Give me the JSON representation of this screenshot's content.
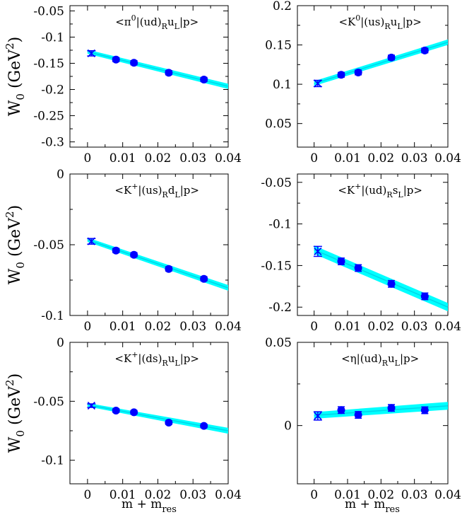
{
  "figure": {
    "ylabel_main": "W",
    "ylabel_sub": "0",
    "ylabel_unit": "(GeV",
    "ylabel_pow": "2",
    "ylabel_close": ")",
    "xlabel_main": "m + m",
    "xlabel_sub": "res"
  },
  "chart_data": [
    {
      "type": "scatter",
      "title": "<π⁰|(ud)RuL|p>",
      "title_parts": {
        "bra": "<π",
        "bra_sup": "0",
        "mid": "|(ud)",
        "sub1": "R",
        "u": "u",
        "sub2": "L",
        "ket": "|p>"
      },
      "xlim": [
        -0.005,
        0.04
      ],
      "ylim": [
        -0.31,
        -0.04
      ],
      "xticks": [
        "0",
        "0.01",
        "0.02",
        "0.03",
        "0.04"
      ],
      "yticks": [
        "-0.05",
        "-0.1",
        "-0.15",
        "-0.2",
        "-0.25",
        "-0.3"
      ],
      "ytick_values": [
        -0.05,
        -0.1,
        -0.15,
        -0.2,
        -0.25,
        -0.3
      ],
      "points": {
        "x": [
          0.0081,
          0.0132,
          0.0231,
          0.0331
        ],
        "y": [
          -0.143,
          -0.149,
          -0.168,
          -0.181
        ],
        "err": [
          0.004,
          0.004,
          0.004,
          0.004
        ]
      },
      "chiral_point": {
        "x": 0.0011,
        "y": -0.131,
        "err": 0.005
      },
      "fit_band": {
        "x": [
          0.0,
          0.04
        ],
        "y_upper": [
          -0.124,
          -0.189
        ],
        "y_lower": [
          -0.132,
          -0.199
        ]
      }
    },
    {
      "type": "scatter",
      "title": "<K⁰|(us)RuL|p>",
      "title_parts": {
        "bra": "<K",
        "bra_sup": "0",
        "mid": "|(us)",
        "sub1": "R",
        "u": "u",
        "sub2": "L",
        "ket": "|p>"
      },
      "xlim": [
        -0.005,
        0.04
      ],
      "ylim": [
        0.02,
        0.2
      ],
      "xticks": [
        "0",
        "0.01",
        "0.02",
        "0.03",
        "0.04"
      ],
      "yticks": [
        "0.2",
        "0.15",
        "0.1",
        "0.05"
      ],
      "ytick_values": [
        0.2,
        0.15,
        0.1,
        0.05
      ],
      "points": {
        "x": [
          0.0081,
          0.0132,
          0.0231,
          0.0331
        ],
        "y": [
          0.112,
          0.115,
          0.134,
          0.143
        ],
        "err": [
          0.003,
          0.003,
          0.003,
          0.003
        ]
      },
      "chiral_point": {
        "x": 0.0011,
        "y": 0.101,
        "err": 0.004
      },
      "fit_band": {
        "x": [
          0.0,
          0.04
        ],
        "y_upper": [
          0.104,
          0.157
        ],
        "y_lower": [
          0.098,
          0.15
        ]
      }
    },
    {
      "type": "scatter",
      "title": "<K⁺|(us)RdL|p>",
      "title_parts": {
        "bra": "<K",
        "bra_sup": "+",
        "mid": "|(us)",
        "sub1": "R",
        "u": "d",
        "sub2": "L",
        "ket": "|p>"
      },
      "xlim": [
        -0.005,
        0.04
      ],
      "ylim": [
        -0.1,
        0.0
      ],
      "xticks": [
        "0",
        "0.01",
        "0.02",
        "0.03",
        "0.04"
      ],
      "yticks": [
        "0",
        "-0.05",
        "-0.1"
      ],
      "ytick_values": [
        0.0,
        -0.05,
        -0.1
      ],
      "points": {
        "x": [
          0.0081,
          0.0132,
          0.0231,
          0.0331
        ],
        "y": [
          -0.0541,
          -0.0571,
          -0.0671,
          -0.0741
        ],
        "err": [
          0.0015,
          0.0015,
          0.0015,
          0.0015
        ]
      },
      "chiral_point": {
        "x": 0.0011,
        "y": -0.0476,
        "err": 0.002
      },
      "fit_band": {
        "x": [
          0.0,
          0.04
        ],
        "y_upper": [
          -0.045,
          -0.0785
        ],
        "y_lower": [
          -0.048,
          -0.0825
        ]
      }
    },
    {
      "type": "scatter",
      "title": "<K⁺|(ud)RsL|p>",
      "title_parts": {
        "bra": "<K",
        "bra_sup": "+",
        "mid": "|(ud)",
        "sub1": "R",
        "u": "s",
        "sub2": "L",
        "ket": "|p>"
      },
      "xlim": [
        -0.005,
        0.04
      ],
      "ylim": [
        -0.21,
        -0.04
      ],
      "xticks": [
        "0",
        "0.01",
        "0.02",
        "0.03",
        "0.04"
      ],
      "yticks": [
        "-0.05",
        "-0.1",
        "-0.15",
        "-0.2"
      ],
      "ytick_values": [
        -0.05,
        -0.1,
        -0.15,
        -0.2
      ],
      "points": {
        "x": [
          0.0081,
          0.0132,
          0.0231,
          0.0331
        ],
        "y": [
          -0.145,
          -0.153,
          -0.172,
          -0.187
        ],
        "err": [
          0.004,
          0.004,
          0.004,
          0.004
        ]
      },
      "chiral_point": {
        "x": 0.0011,
        "y": -0.133,
        "err": 0.006
      },
      "fit_band": {
        "x": [
          0.0,
          0.04
        ],
        "y_upper": [
          -0.126,
          -0.195
        ],
        "y_lower": [
          -0.136,
          -0.205
        ]
      }
    },
    {
      "type": "scatter",
      "title": "<K⁺|(ds)RuL|p>",
      "title_parts": {
        "bra": "<K",
        "bra_sup": "+",
        "mid": "|(ds)",
        "sub1": "R",
        "u": "u",
        "sub2": "L",
        "ket": "|p>"
      },
      "xlim": [
        -0.005,
        0.04
      ],
      "ylim": [
        -0.12,
        0.0
      ],
      "xticks": [
        "0",
        "0.01",
        "0.02",
        "0.03",
        "0.04"
      ],
      "yticks": [
        "0",
        "-0.05",
        "-0.1"
      ],
      "ytick_values": [
        0.0,
        -0.05,
        -0.1
      ],
      "points": {
        "x": [
          0.0081,
          0.0132,
          0.0231,
          0.0331
        ],
        "y": [
          -0.0579,
          -0.0593,
          -0.0681,
          -0.0709
        ],
        "err": [
          0.0015,
          0.0015,
          0.0015,
          0.0015
        ]
      },
      "chiral_point": {
        "x": 0.0011,
        "y": -0.0537,
        "err": 0.0015
      },
      "fit_band": {
        "x": [
          0.0,
          0.04
        ],
        "y_upper": [
          -0.0515,
          -0.0725
        ],
        "y_lower": [
          -0.0545,
          -0.0775
        ]
      }
    },
    {
      "type": "scatter",
      "title": "<η|(ud)RuL|p>",
      "title_parts": {
        "bra": "<η",
        "bra_sup": "",
        "mid": "|(ud)",
        "sub1": "R",
        "u": "u",
        "sub2": "L",
        "ket": "|p>"
      },
      "xlim": [
        -0.005,
        0.04
      ],
      "ylim": [
        -0.035,
        0.05
      ],
      "xticks": [
        "0",
        "0.01",
        "0.02",
        "0.03",
        "0.04"
      ],
      "yticks": [
        "0.05",
        "0"
      ],
      "ytick_values": [
        0.05,
        0.0
      ],
      "points": {
        "x": [
          0.0081,
          0.0132,
          0.0231,
          0.0331
        ],
        "y": [
          0.0093,
          0.0064,
          0.0106,
          0.0092
        ],
        "err": [
          0.002,
          0.002,
          0.002,
          0.002
        ]
      },
      "chiral_point": {
        "x": 0.0011,
        "y": 0.0058,
        "err": 0.0025
      },
      "fit_band": {
        "x": [
          0.0,
          0.04
        ],
        "y_upper": [
          0.0081,
          0.0142
        ],
        "y_lower": [
          0.0041,
          0.0095
        ]
      }
    }
  ],
  "colors": {
    "fit_band": "#00ffff",
    "fit_line": "#00d5e8",
    "points": "#0000ff",
    "axes": "#000000"
  }
}
